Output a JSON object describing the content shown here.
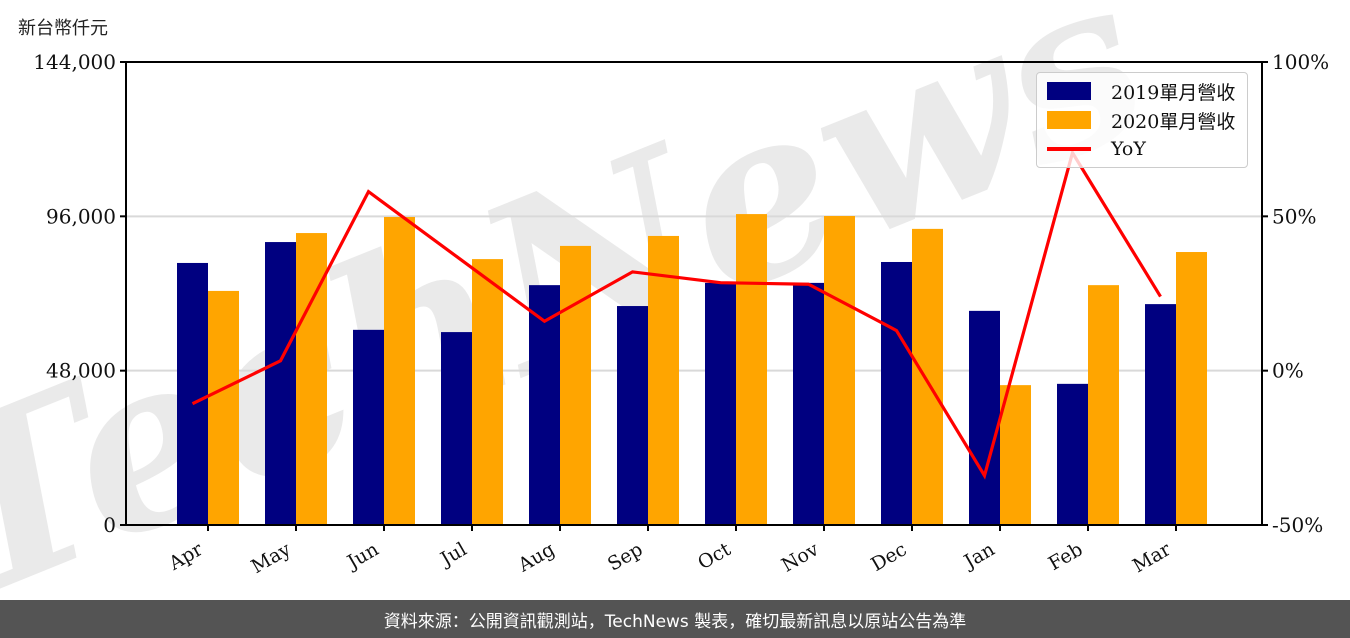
{
  "chart_data": {
    "type": "bar",
    "title": "",
    "unit_label": "新台幣仟元",
    "xlabel": "",
    "ylabel": "新台幣仟元",
    "y2label": "YoY",
    "categories": [
      "Apr",
      "May",
      "Jun",
      "Jul",
      "Aug",
      "Sep",
      "Oct",
      "Nov",
      "Dec",
      "Jan",
      "Feb",
      "Mar"
    ],
    "series": [
      {
        "name": "2019單月營收",
        "type": "bar",
        "axis": "left",
        "color": "#000080",
        "values": [
          81500,
          88000,
          60700,
          60000,
          74600,
          68100,
          75300,
          75300,
          81800,
          66600,
          43900,
          68700
        ]
      },
      {
        "name": "2020單月營收",
        "type": "bar",
        "axis": "left",
        "color": "#FFA500",
        "values": [
          72800,
          90800,
          95800,
          82700,
          86800,
          89900,
          96700,
          96100,
          92100,
          43500,
          74600,
          84900
        ]
      },
      {
        "name": "YoY",
        "type": "line",
        "axis": "right",
        "color": "#FF0000",
        "values": [
          -10.7,
          3.2,
          58.0,
          37.0,
          16.0,
          32.0,
          28.5,
          28.0,
          13.0,
          -34.0,
          70.6,
          24.0
        ]
      }
    ],
    "ylim": [
      0,
      144000
    ],
    "y_ticks": [
      0,
      48000,
      96000,
      144000
    ],
    "y_tick_labels": [
      "0",
      "48,000",
      "96,000",
      "144,000"
    ],
    "y2lim": [
      -50,
      100
    ],
    "y2_ticks": [
      -50,
      0,
      50,
      100
    ],
    "y2_tick_labels": [
      "-50%",
      "0%",
      "50%",
      "100%"
    ],
    "grid": "horizontal at 48,000 and 96,000",
    "legend_position": "upper right",
    "watermark": "TechNews"
  },
  "legend": {
    "items": [
      {
        "label": "2019單月營收",
        "color": "#000080",
        "kind": "bar"
      },
      {
        "label": "2020單月營收",
        "color": "#FFA500",
        "kind": "bar"
      },
      {
        "label": "YoY",
        "color": "#FF0000",
        "kind": "line"
      }
    ]
  },
  "footer": {
    "text": "資料來源：公開資訊觀測站，TechNews 製表，確切最新訊息以原站公告為準"
  },
  "colors": {
    "bar_2019": "#000080",
    "bar_2020": "#FFA500",
    "yoy_line": "#FF0000",
    "grid": "#d9d9d9",
    "footer_bg": "#545454"
  }
}
